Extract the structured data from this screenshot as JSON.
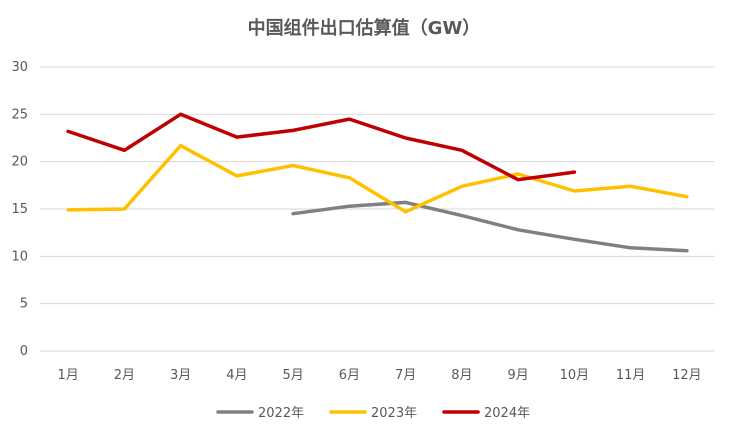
{
  "chart_data": {
    "type": "line",
    "title": "中国组件出口估算值（GW）",
    "xlabel": "",
    "ylabel": "",
    "categories": [
      "1月",
      "2月",
      "3月",
      "4月",
      "5月",
      "6月",
      "7月",
      "8月",
      "9月",
      "10月",
      "11月",
      "12月"
    ],
    "ylim": [
      0,
      30
    ],
    "yticks": [
      0,
      5,
      10,
      15,
      20,
      25,
      30
    ],
    "grid": true,
    "legend_position": "bottom",
    "series": [
      {
        "name": "2022年",
        "color": "#808080",
        "values": [
          null,
          null,
          null,
          null,
          14.5,
          15.3,
          15.7,
          14.3,
          12.8,
          11.8,
          10.9,
          10.6
        ]
      },
      {
        "name": "2023年",
        "color": "#FFC000",
        "values": [
          14.9,
          15.0,
          21.7,
          18.5,
          19.6,
          18.3,
          14.7,
          17.4,
          18.7,
          16.9,
          17.4,
          16.3
        ]
      },
      {
        "name": "2024年",
        "color": "#C00000",
        "values": [
          23.2,
          21.2,
          25.0,
          22.6,
          23.3,
          24.5,
          22.5,
          21.2,
          18.1,
          18.9,
          null,
          null
        ]
      }
    ]
  }
}
